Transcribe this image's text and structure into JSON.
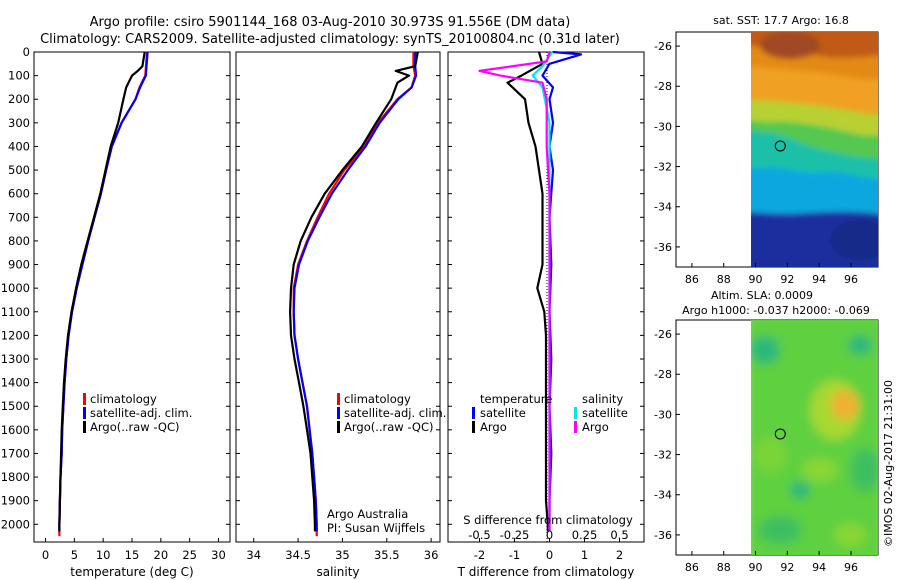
{
  "header": {
    "line1": "Argo profile: csiro 5901144_168 03-Aug-2010 30.973S 91.556E (DM data)",
    "line2": "Climatology: CARS2009. Satellite-adjusted climatology: synTS_20100804.nc (0.31d later)"
  },
  "colors": {
    "climatology": "#ff0000",
    "satellite": "#0000ff",
    "argo": "#000000",
    "sal_satellite": "#00e5ee",
    "sal_argo": "#ff00ff"
  },
  "chart_data": [
    {
      "id": "temperature",
      "type": "line",
      "xlabel": "temperature (deg C)",
      "ylabel": "",
      "xlim": [
        -2,
        32
      ],
      "ylim": [
        0,
        2075
      ],
      "y_inverted": true,
      "xticks": [
        0,
        5,
        10,
        15,
        20,
        25,
        30
      ],
      "yticks": [
        0,
        100,
        200,
        300,
        400,
        500,
        600,
        700,
        800,
        900,
        1000,
        1100,
        1200,
        1300,
        1400,
        1500,
        1600,
        1700,
        1800,
        1900,
        2000
      ],
      "legend": [
        "climatology",
        "satellite-adj. clim.",
        "Argo(..raw -QC)"
      ],
      "legend_position": "lower-right",
      "series": [
        {
          "name": "climatology",
          "color": "#ff0000",
          "points": [
            [
              17.6,
              0
            ],
            [
              17.3,
              100
            ],
            [
              16.3,
              150
            ],
            [
              15.6,
              200
            ],
            [
              13.2,
              300
            ],
            [
              11.5,
              400
            ],
            [
              10.5,
              500
            ],
            [
              9.6,
              600
            ],
            [
              8.5,
              700
            ],
            [
              7.4,
              800
            ],
            [
              6.4,
              900
            ],
            [
              5.4,
              1000
            ],
            [
              4.6,
              1100
            ],
            [
              4.0,
              1200
            ],
            [
              3.6,
              1300
            ],
            [
              3.3,
              1400
            ],
            [
              3.1,
              1500
            ],
            [
              2.9,
              1600
            ],
            [
              2.8,
              1700
            ],
            [
              2.6,
              1800
            ],
            [
              2.5,
              1900
            ],
            [
              2.4,
              2000
            ],
            [
              2.4,
              2050
            ]
          ]
        },
        {
          "name": "satellite-adj. clim.",
          "color": "#0000ff",
          "points": [
            [
              17.7,
              0
            ],
            [
              17.4,
              100
            ],
            [
              16.4,
              150
            ],
            [
              15.6,
              200
            ],
            [
              13.2,
              300
            ],
            [
              11.5,
              400
            ],
            [
              10.5,
              500
            ],
            [
              9.6,
              600
            ],
            [
              8.5,
              700
            ],
            [
              7.4,
              800
            ],
            [
              6.4,
              900
            ],
            [
              5.4,
              1000
            ],
            [
              4.6,
              1100
            ],
            [
              4.0,
              1200
            ],
            [
              3.6,
              1300
            ],
            [
              3.3,
              1400
            ],
            [
              3.1,
              1500
            ],
            [
              2.9,
              1600
            ],
            [
              2.8,
              1700
            ],
            [
              2.6,
              1800
            ],
            [
              2.5,
              1900
            ],
            [
              2.4,
              2000
            ],
            [
              2.4,
              2030
            ]
          ]
        },
        {
          "name": "Argo(..raw -QC)",
          "color": "#000000",
          "points": [
            [
              17.2,
              0
            ],
            [
              16.8,
              60
            ],
            [
              16.0,
              80
            ],
            [
              15.0,
              100
            ],
            [
              14.0,
              150
            ],
            [
              13.5,
              200
            ],
            [
              12.6,
              300
            ],
            [
              11.3,
              400
            ],
            [
              10.4,
              500
            ],
            [
              9.5,
              600
            ],
            [
              8.4,
              700
            ],
            [
              7.3,
              800
            ],
            [
              6.2,
              900
            ],
            [
              5.3,
              1000
            ],
            [
              4.5,
              1100
            ],
            [
              3.9,
              1200
            ],
            [
              3.5,
              1300
            ],
            [
              3.2,
              1400
            ],
            [
              3.0,
              1500
            ],
            [
              2.8,
              1600
            ],
            [
              2.7,
              1700
            ],
            [
              2.6,
              1800
            ],
            [
              2.5,
              1900
            ],
            [
              2.4,
              2000
            ],
            [
              2.4,
              2030
            ]
          ]
        }
      ]
    },
    {
      "id": "salinity",
      "type": "line",
      "xlabel": "salinity",
      "xlim": [
        33.8,
        36.1
      ],
      "ylim": [
        0,
        2075
      ],
      "y_inverted": true,
      "xticks": [
        34,
        34.5,
        35,
        35.5,
        36
      ],
      "yticks": [
        0,
        100,
        200,
        300,
        400,
        500,
        600,
        700,
        800,
        900,
        1000,
        1100,
        1200,
        1300,
        1400,
        1500,
        1600,
        1700,
        1800,
        1900,
        2000
      ],
      "legend": [
        "climatology",
        "satellite-adj. clim.",
        "Argo(..raw -QC)"
      ],
      "legend_position": "lower-right",
      "annotation": [
        "Argo Australia",
        "PI: Susan Wijffels"
      ],
      "series": [
        {
          "name": "climatology",
          "color": "#ff0000",
          "points": [
            [
              35.8,
              0
            ],
            [
              35.8,
              60
            ],
            [
              35.82,
              100
            ],
            [
              35.78,
              150
            ],
            [
              35.62,
              200
            ],
            [
              35.4,
              300
            ],
            [
              35.25,
              400
            ],
            [
              35.02,
              500
            ],
            [
              34.85,
              600
            ],
            [
              34.72,
              700
            ],
            [
              34.6,
              800
            ],
            [
              34.5,
              900
            ],
            [
              34.45,
              1000
            ],
            [
              34.45,
              1100
            ],
            [
              34.46,
              1200
            ],
            [
              34.5,
              1300
            ],
            [
              34.55,
              1400
            ],
            [
              34.6,
              1500
            ],
            [
              34.63,
              1600
            ],
            [
              34.66,
              1700
            ],
            [
              34.68,
              1800
            ],
            [
              34.7,
              1900
            ],
            [
              34.71,
              2000
            ],
            [
              34.71,
              2050
            ]
          ]
        },
        {
          "name": "satellite-adj. clim.",
          "color": "#0000ff",
          "points": [
            [
              35.82,
              0
            ],
            [
              35.82,
              60
            ],
            [
              35.83,
              100
            ],
            [
              35.78,
              150
            ],
            [
              35.63,
              200
            ],
            [
              35.42,
              300
            ],
            [
              35.26,
              400
            ],
            [
              35.06,
              500
            ],
            [
              34.88,
              600
            ],
            [
              34.74,
              700
            ],
            [
              34.61,
              800
            ],
            [
              34.51,
              900
            ],
            [
              34.46,
              1000
            ],
            [
              34.45,
              1100
            ],
            [
              34.46,
              1200
            ],
            [
              34.5,
              1300
            ],
            [
              34.55,
              1400
            ],
            [
              34.6,
              1500
            ],
            [
              34.63,
              1600
            ],
            [
              34.66,
              1700
            ],
            [
              34.68,
              1800
            ],
            [
              34.7,
              1900
            ],
            [
              34.71,
              2000
            ],
            [
              34.71,
              2030
            ]
          ]
        },
        {
          "name": "Argo(..raw -QC)",
          "color": "#000000",
          "points": [
            [
              35.85,
              0
            ],
            [
              35.82,
              60
            ],
            [
              35.6,
              80
            ],
            [
              35.75,
              100
            ],
            [
              35.62,
              130
            ],
            [
              35.55,
              200
            ],
            [
              35.38,
              300
            ],
            [
              35.22,
              400
            ],
            [
              35.0,
              500
            ],
            [
              34.8,
              600
            ],
            [
              34.65,
              700
            ],
            [
              34.53,
              800
            ],
            [
              34.45,
              900
            ],
            [
              34.42,
              1000
            ],
            [
              34.41,
              1100
            ],
            [
              34.42,
              1200
            ],
            [
              34.46,
              1300
            ],
            [
              34.51,
              1400
            ],
            [
              34.56,
              1500
            ],
            [
              34.6,
              1600
            ],
            [
              34.64,
              1700
            ],
            [
              34.66,
              1800
            ],
            [
              34.68,
              1900
            ],
            [
              34.69,
              2000
            ],
            [
              34.69,
              2030
            ]
          ]
        }
      ]
    },
    {
      "id": "difference",
      "type": "line",
      "xlabel": "T difference from climatology",
      "xlabel_top": "S difference from climatology",
      "xlim": [
        -2.9,
        2.7
      ],
      "ylim": [
        0,
        2075
      ],
      "y_inverted": true,
      "xticks": [
        -2,
        -1,
        0,
        1,
        2
      ],
      "xticks_sal": [
        "-0.5",
        "-0.25",
        "0",
        "0.25",
        "0.5"
      ],
      "yticks": [
        0,
        100,
        200,
        300,
        400,
        500,
        600,
        700,
        800,
        900,
        1000,
        1100,
        1200,
        1300,
        1400,
        1500,
        1600,
        1700,
        1800,
        1900,
        2000
      ],
      "legend_temperature": {
        "title": "temperature",
        "items": [
          "satellite",
          "Argo"
        ]
      },
      "legend_salinity": {
        "title": "salinity",
        "items": [
          "satellite",
          "Argo"
        ]
      },
      "series": [
        {
          "name": "temperature satellite",
          "color": "#0000ff",
          "points": [
            [
              0.1,
              0
            ],
            [
              0.9,
              10
            ],
            [
              0.0,
              50
            ],
            [
              -0.2,
              100
            ],
            [
              0.1,
              150
            ],
            [
              0.0,
              200
            ],
            [
              0.1,
              300
            ],
            [
              0.0,
              400
            ],
            [
              0.1,
              500
            ],
            [
              0.0,
              700
            ],
            [
              0.05,
              900
            ],
            [
              0.0,
              1100
            ],
            [
              0.05,
              1300
            ],
            [
              0.0,
              1500
            ],
            [
              0.05,
              1700
            ],
            [
              0.0,
              1900
            ],
            [
              0.0,
              2030
            ]
          ]
        },
        {
          "name": "temperature Argo",
          "color": "#000000",
          "points": [
            [
              -0.3,
              0
            ],
            [
              -0.2,
              50
            ],
            [
              -0.8,
              100
            ],
            [
              -1.2,
              130
            ],
            [
              -0.7,
              200
            ],
            [
              -0.6,
              300
            ],
            [
              -0.4,
              400
            ],
            [
              -0.3,
              500
            ],
            [
              -0.2,
              600
            ],
            [
              -0.2,
              800
            ],
            [
              -0.2,
              900
            ],
            [
              -0.35,
              1000
            ],
            [
              -0.15,
              1100
            ],
            [
              -0.1,
              1200
            ],
            [
              -0.1,
              1300
            ],
            [
              -0.1,
              1400
            ],
            [
              -0.1,
              1500
            ],
            [
              -0.1,
              1600
            ],
            [
              -0.1,
              1700
            ],
            [
              -0.1,
              1800
            ],
            [
              -0.1,
              1900
            ],
            [
              -0.05,
              2000
            ],
            [
              -0.05,
              2030
            ]
          ]
        },
        {
          "name": "salinity satellite",
          "color": "#00e5ee",
          "points": [
            [
              0.02,
              0
            ],
            [
              -0.05,
              60
            ],
            [
              -0.12,
              100
            ],
            [
              -0.05,
              150
            ],
            [
              0.0,
              300
            ],
            [
              0.0,
              600
            ],
            [
              0.0,
              900
            ],
            [
              0.0,
              1200
            ],
            [
              0.0,
              1500
            ],
            [
              0.0,
              1800
            ],
            [
              0.0,
              2030
            ]
          ]
        },
        {
          "name": "salinity Argo",
          "color": "#ff00ff",
          "points": [
            [
              0.0,
              0
            ],
            [
              -0.02,
              40
            ],
            [
              -0.5,
              80
            ],
            [
              -0.35,
              100
            ],
            [
              -0.05,
              130
            ],
            [
              -0.02,
              200
            ],
            [
              -0.02,
              300
            ],
            [
              -0.02,
              400
            ],
            [
              0.0,
              600
            ],
            [
              0.0,
              900
            ],
            [
              0.0,
              1200
            ],
            [
              0.0,
              1500
            ],
            [
              0.0,
              1800
            ],
            [
              0.0,
              2030
            ]
          ]
        }
      ]
    }
  ],
  "maps": [
    {
      "id": "sst-map",
      "title": "sat. SST: 17.7 Argo: 16.8",
      "xticks": [
        "86",
        "88",
        "90",
        "92",
        "94",
        "96"
      ],
      "yticks": [
        "-26",
        "-28",
        "-30",
        "-32",
        "-34",
        "-36"
      ],
      "xlim": [
        85,
        97.7
      ],
      "ylim": [
        -25.3,
        -37
      ],
      "profile_location": [
        91.556,
        -30.973
      ]
    },
    {
      "id": "sla-map",
      "title_line1": "Altim. SLA: 0.0009",
      "title_line2": "Argo h1000: -0.037 h2000: -0.069",
      "xticks": [
        "86",
        "88",
        "90",
        "92",
        "94",
        "96"
      ],
      "yticks": [
        "-26",
        "-28",
        "-30",
        "-32",
        "-34",
        "-36"
      ],
      "xlim": [
        85,
        97.7
      ],
      "ylim": [
        -25.3,
        -37
      ],
      "profile_location": [
        91.556,
        -30.973
      ]
    }
  ],
  "footer": {
    "watermark": "©IMOS 02-Aug-2017 21:31:00"
  }
}
